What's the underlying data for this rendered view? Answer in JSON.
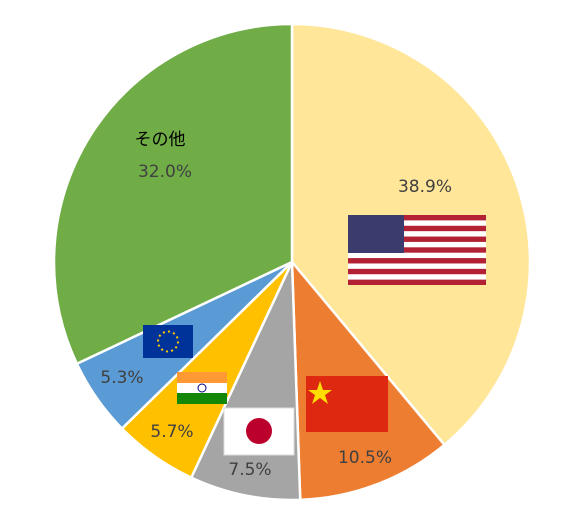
{
  "chart_data": {
    "type": "pie",
    "categories": [
      null,
      null,
      null,
      null,
      null,
      "その他"
    ],
    "values": [
      38.9,
      10.5,
      7.5,
      5.7,
      5.3,
      32.0
    ],
    "value_labels": [
      "38.9%",
      "10.5%",
      "7.5%",
      "5.7%",
      "5.3%",
      "32.0%"
    ],
    "colors": [
      "#FFE699",
      "#ED7D31",
      "#A5A5A5",
      "#FFC000",
      "#5B9BD5",
      "#70AD47"
    ]
  }
}
